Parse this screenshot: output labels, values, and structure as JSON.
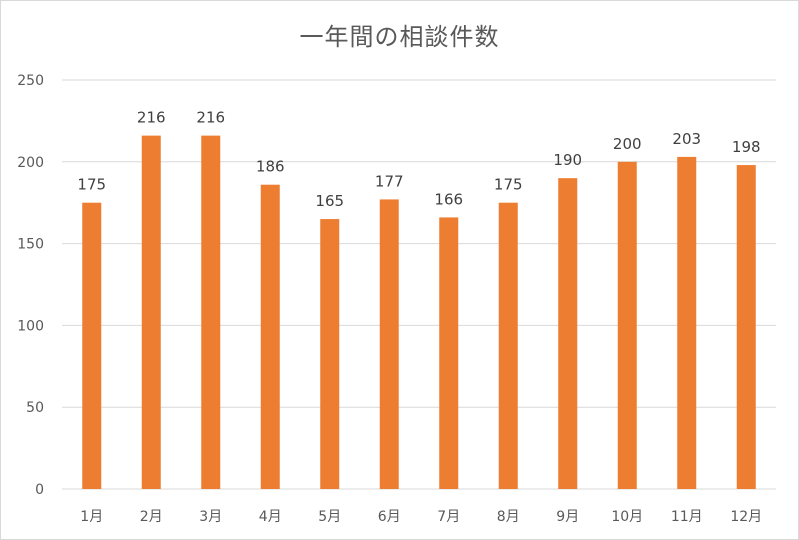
{
  "chart_data": {
    "type": "bar",
    "title": "一年間の相談件数",
    "categories": [
      "1月",
      "2月",
      "3月",
      "4月",
      "5月",
      "6月",
      "7月",
      "8月",
      "9月",
      "10月",
      "11月",
      "12月"
    ],
    "values": [
      175,
      216,
      216,
      186,
      165,
      177,
      166,
      175,
      190,
      200,
      203,
      198
    ],
    "ylim": [
      0,
      250
    ],
    "yticks": [
      0,
      50,
      100,
      150,
      200,
      250
    ],
    "grid": true,
    "legend": "none",
    "bar_color": "#ED7D31",
    "grid_color": "#d9d9d9"
  }
}
